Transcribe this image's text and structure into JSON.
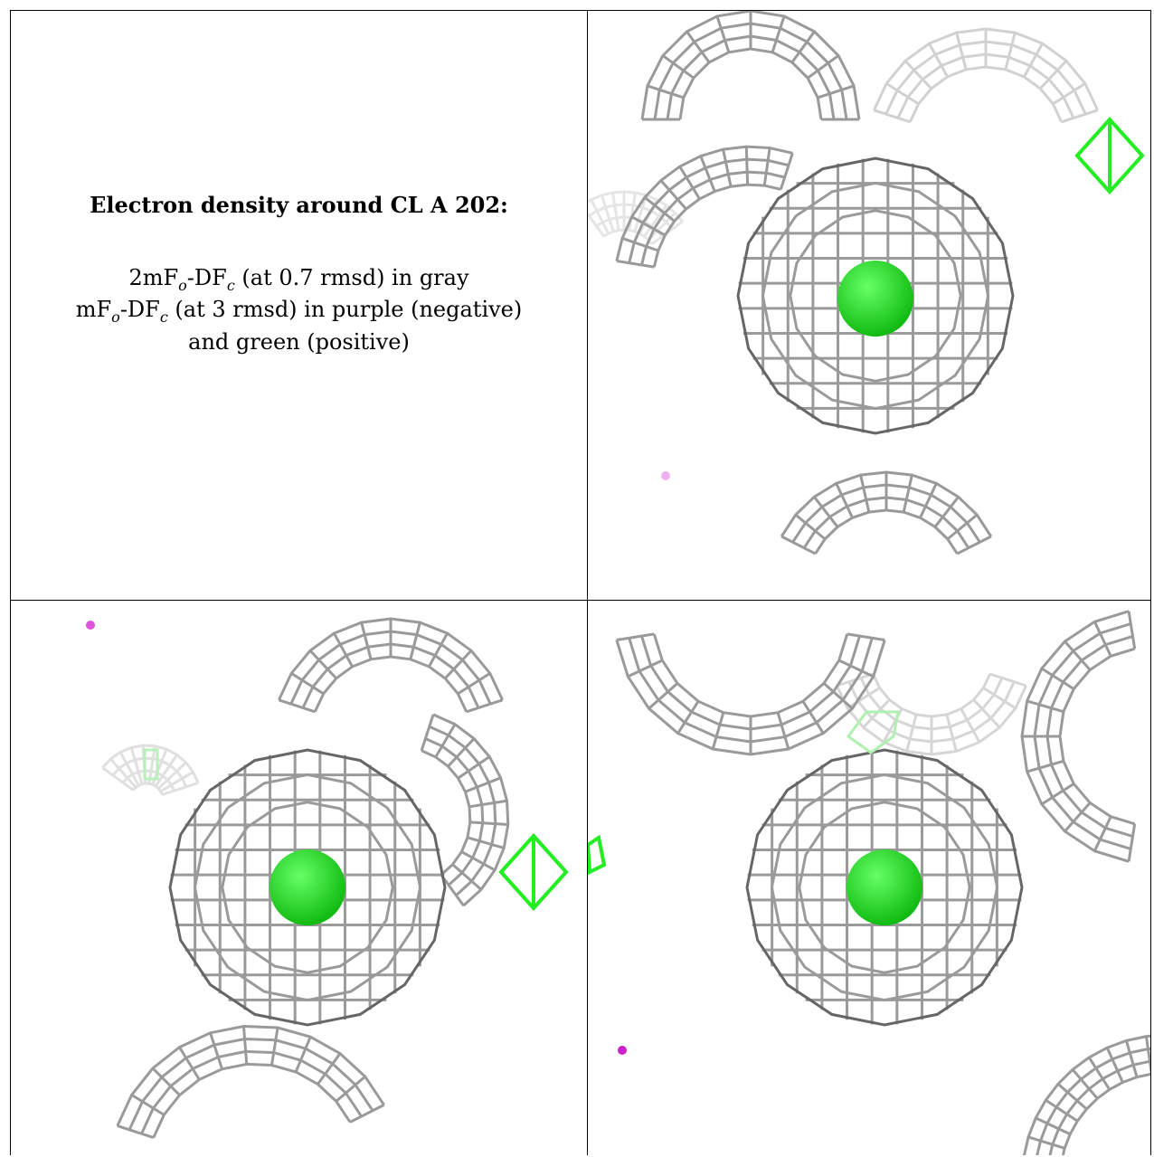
{
  "title": "Electron density around CL A 202:",
  "legend": {
    "line1_prefix": "2mF",
    "line1_sub1": "o",
    "line1_mid": "-DF",
    "line1_sub2": "c",
    "line1_suffix": " (at 0.7 rmsd) in gray",
    "line2_prefix": "mF",
    "line2_sub1": "o",
    "line2_mid": "-DF",
    "line2_sub2": "c",
    "line2_suffix": " (at 3 rmsd) in purple (negative)",
    "line3": "and green (positive)"
  },
  "colors": {
    "mesh_gray": "#9a9a9a",
    "mesh_dark": "#666666",
    "atom_green": "#22dd22",
    "positive_green": "#22ee22",
    "negative_purple": "#dd55dd"
  },
  "views": [
    {
      "name": "view-top-right",
      "atom": "CL A 202"
    },
    {
      "name": "view-bottom-left",
      "atom": "CL A 202"
    },
    {
      "name": "view-bottom-right",
      "atom": "CL A 202"
    }
  ]
}
